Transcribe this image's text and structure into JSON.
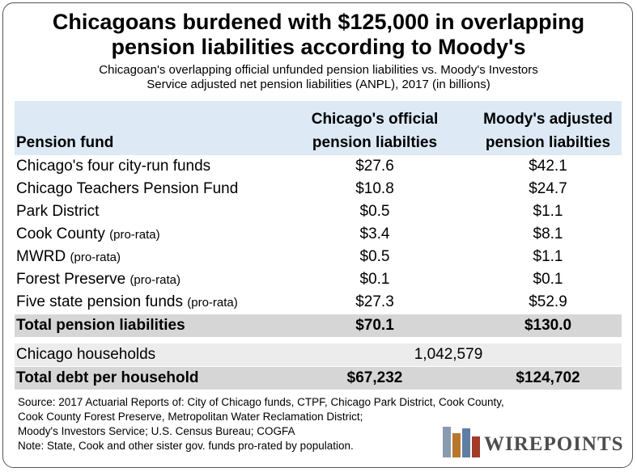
{
  "title_line1": "Chicagoans burdened with $125,000 in overlapping",
  "title_line2": "pension liabilities according to Moody's",
  "subtitle_line1": "Chicagoan's overlapping official unfunded pension liabilities vs. Moody's Investors",
  "subtitle_line2": "Service adjusted net pension liabilities (ANPL), 2017 (in billions)",
  "chart_data": {
    "type": "table",
    "columns": {
      "name": "Pension fund",
      "official_line1": "Chicago's official",
      "official_line2": "pension liabilties",
      "moody_line1": "Moody's adjusted",
      "moody_line2": "pension liabilties"
    },
    "rows": [
      {
        "name": "Chicago's four city-run funds",
        "note": "",
        "official": "$27.6",
        "moody": "$42.1"
      },
      {
        "name": "Chicago Teachers Pension Fund",
        "note": "",
        "official": "$10.8",
        "moody": "$24.7"
      },
      {
        "name": "Park District",
        "note": "",
        "official": "$0.5",
        "moody": "$1.1"
      },
      {
        "name": "Cook County",
        "note": "(pro-rata)",
        "official": "$3.4",
        "moody": "$8.1"
      },
      {
        "name": "MWRD",
        "note": "(pro-rata)",
        "official": "$0.5",
        "moody": "$1.1"
      },
      {
        "name": "Forest Preserve",
        "note": "(pro-rata)",
        "official": "$0.1",
        "moody": "$0.1"
      },
      {
        "name": "Five state pension funds",
        "note": "(pro-rata)",
        "official": "$27.3",
        "moody": "$52.9"
      }
    ],
    "total": {
      "name": "Total pension liabilities",
      "official": "$70.1",
      "moody": "$130.0"
    },
    "households": {
      "name": "Chicago households",
      "value": "1,042,579"
    },
    "per_household": {
      "name": "Total debt per household",
      "official": "$67,232",
      "moody": "$124,702"
    }
  },
  "source": [
    "Source: 2017 Actuarial Reports of: City of Chicago funds, CTPF, Chicago Park District, Cook County,",
    "Cook County Forest Preserve, Metropolitan Water Reclamation District;",
    "Moody's Investors Service; U.S. Census Bureau; COGFA",
    "Note: State, Cook and other sister gov. funds pro-rated by population."
  ],
  "logo": {
    "text": "WIREPOINTS",
    "colors": [
      "#8a9bb0",
      "#b8762e",
      "#5d7fa3",
      "#a33a2a"
    ]
  }
}
